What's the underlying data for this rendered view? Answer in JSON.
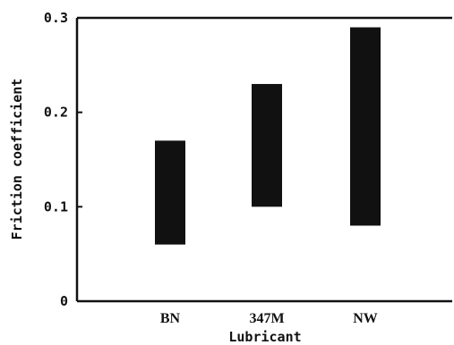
{
  "chart_data": {
    "type": "bar",
    "subtype": "floating-range",
    "xlabel": "Lubricant",
    "ylabel": "Friction coefficient",
    "categories": [
      "BN",
      "347M",
      "NW"
    ],
    "ranges": [
      {
        "category": "BN",
        "low": 0.06,
        "high": 0.17
      },
      {
        "category": "347M",
        "low": 0.1,
        "high": 0.23
      },
      {
        "category": "NW",
        "low": 0.08,
        "high": 0.29
      }
    ],
    "ylim": [
      0,
      0.3
    ],
    "yticks": [
      "0",
      "0.1",
      "0.2",
      "0.3"
    ],
    "grid": false,
    "bar_color": "#111111"
  }
}
